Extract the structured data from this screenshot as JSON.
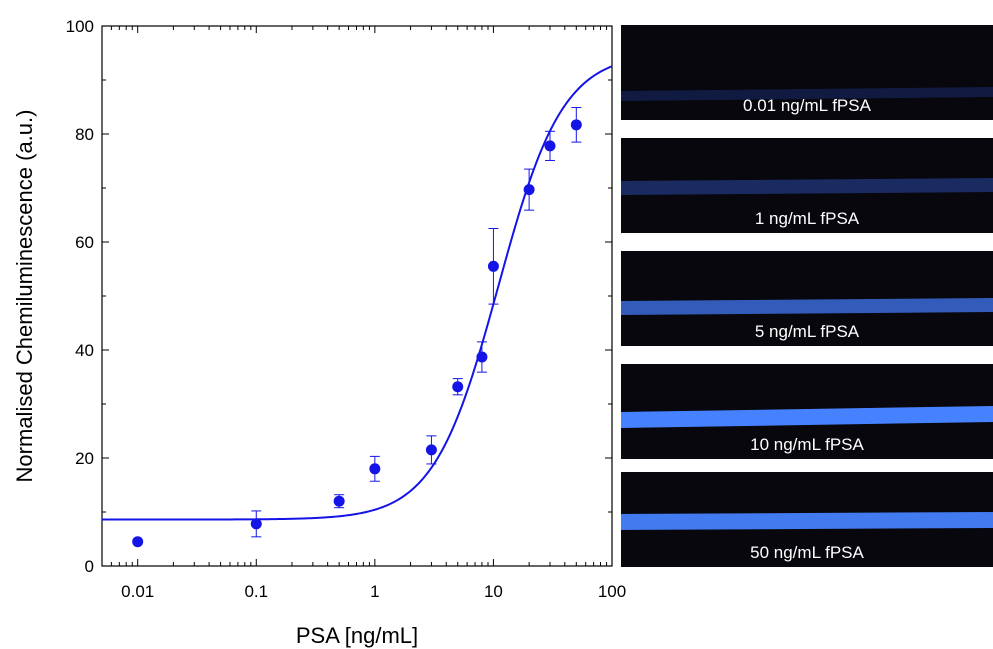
{
  "chart_data": {
    "type": "scatter",
    "xlabel": "PSA [ng/mL]",
    "ylabel": "Normalised Chemiluminescence (a.u.)",
    "xscale": "log",
    "xlim": [
      0.005,
      100
    ],
    "ylim": [
      0,
      100
    ],
    "xticks": [
      0.01,
      0.1,
      1,
      10,
      100
    ],
    "xtick_labels": [
      "0.01",
      "0.1",
      "1",
      "10",
      "100"
    ],
    "yticks": [
      0,
      20,
      40,
      60,
      80,
      100
    ],
    "ytick_labels": [
      "0",
      "20",
      "40",
      "60",
      "80",
      "100"
    ],
    "color": "#1414e6",
    "series": [
      {
        "x": [
          0.01,
          0.1,
          0.5,
          1,
          3,
          5,
          8,
          10,
          20,
          30,
          50
        ],
        "y": [
          4.5,
          7.8,
          12.0,
          18.0,
          21.5,
          33.2,
          38.7,
          55.5,
          69.7,
          77.8,
          81.7
        ],
        "yerr": [
          0,
          2.4,
          1.2,
          2.3,
          2.6,
          1.5,
          2.8,
          7.0,
          3.8,
          2.7,
          3.2
        ]
      }
    ],
    "fit": {
      "model": "logistic",
      "bottom": 8.6,
      "top": 95,
      "ec50": 11,
      "hill": 1.6
    }
  },
  "images": [
    {
      "label": "0.01 ng/mL fPSA",
      "intensity": 0.15
    },
    {
      "label": "1 ng/mL fPSA",
      "intensity": 0.35
    },
    {
      "label": "5 ng/mL fPSA",
      "intensity": 0.75
    },
    {
      "label": "10 ng/mL fPSA",
      "intensity": 1.0
    },
    {
      "label": "50 ng/mL fPSA",
      "intensity": 0.95
    }
  ]
}
